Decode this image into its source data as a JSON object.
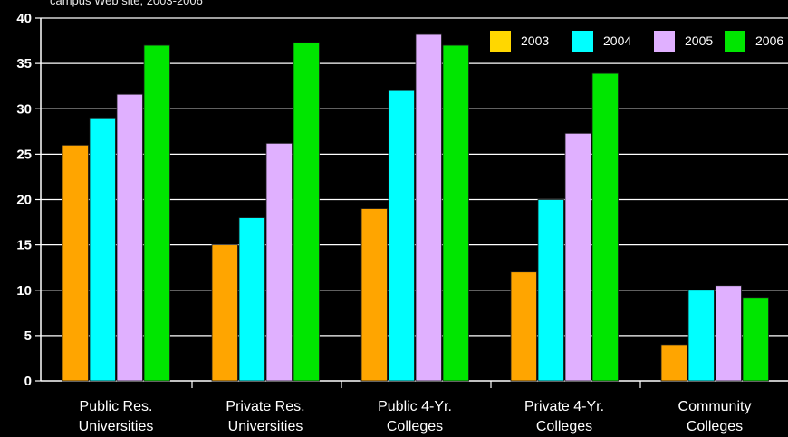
{
  "subtitle": "campus Web site, 2003-2006",
  "chart_data": {
    "type": "bar",
    "title": "",
    "subtitle": "campus Web site, 2003-2006",
    "xlabel": "",
    "ylabel": "",
    "ylim": [
      0,
      40
    ],
    "yticks": [
      0,
      5,
      10,
      15,
      20,
      25,
      30,
      35,
      40
    ],
    "grid": true,
    "legend_position": "top-right",
    "categories": [
      [
        "Public Res.",
        "Universities"
      ],
      [
        "Private Res.",
        "Universities"
      ],
      [
        "Public 4-Yr.",
        "Colleges"
      ],
      [
        "Private 4-Yr.",
        "Colleges"
      ],
      [
        "Community",
        "Colleges"
      ]
    ],
    "series": [
      {
        "name": "2003",
        "bar_color": "#ffa500",
        "legend_color": "#ffd700",
        "values": [
          26,
          15,
          19,
          12,
          4
        ]
      },
      {
        "name": "2004",
        "bar_color": "#00ffff",
        "legend_color": "#00ffff",
        "values": [
          29,
          18,
          32,
          20,
          10
        ]
      },
      {
        "name": "2005",
        "bar_color": "#e0b0ff",
        "legend_color": "#e0b0ff",
        "values": [
          31.6,
          26.2,
          38.2,
          27.3,
          10.5
        ]
      },
      {
        "name": "2006",
        "bar_color": "#00e600",
        "legend_color": "#00e600",
        "values": [
          37,
          37.3,
          37,
          33.9,
          9.2
        ]
      }
    ]
  }
}
